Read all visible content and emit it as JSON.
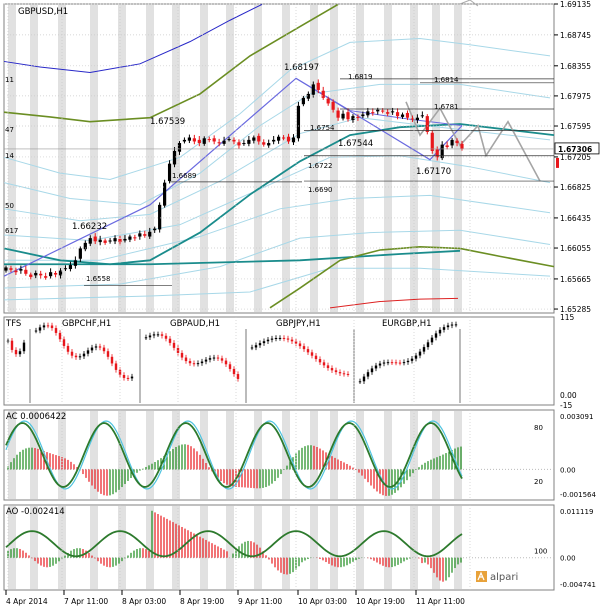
{
  "colors": {
    "bull": "#000000",
    "bear": "#e8171c",
    "kagi": "#a5a5a5",
    "band_outer": "#2828c8",
    "band_olive": "#6b8e23",
    "band_cyan": "#a8d8e8",
    "band_teal": "#1a8c8c",
    "band_red": "#dd2222",
    "zigzag": "#6a6ae0",
    "ac_up": "#1a8a1a",
    "ac_down": "#e8171c",
    "ac_line": "#2d7a2d",
    "ac_signal": "#4fc4e0",
    "grid": "#c9c9c9",
    "stripe": "#d7d7d7"
  },
  "chart_data": [
    {
      "type": "line",
      "panel": "main",
      "title": "GBPUSD,H1",
      "ylim": [
        1.65235,
        1.69135
      ],
      "price_ticks": [
        "1.69135",
        "1.68745",
        "1.68355",
        "1.67975",
        "1.67595",
        "1.67205",
        "1.66825",
        "1.66435",
        "1.66055",
        "1.65665",
        "1.65285"
      ],
      "current_price": "1.67306",
      "left_edge_labels": [
        "11",
        "47",
        "14",
        "50",
        "617"
      ],
      "price_annotations": [
        {
          "text": "1.68197",
          "x": "10 Apr 00:00",
          "y": 1.68197
        },
        {
          "text": "1.67539",
          "x": "8 Apr 15:00",
          "y": 1.67539
        },
        {
          "text": "1.66232",
          "x": "7 Apr 19:00",
          "y": 1.66232
        },
        {
          "text": "1.67544",
          "x": "10 Apr 08:00",
          "y": 1.67544
        },
        {
          "text": "1.67170",
          "x": "11 Apr 07:00",
          "y": 1.6717
        },
        {
          "text": "1.6819",
          "x": "10 Apr 13:00",
          "y": 1.6819
        },
        {
          "text": "1.6814",
          "x": "11 Apr 11:00",
          "y": 1.6814
        },
        {
          "text": "1.6781",
          "x": "11 Apr 11:00",
          "y": 1.6781
        },
        {
          "text": "1.6754",
          "x": "10 Apr 01:00",
          "y": 1.6754
        },
        {
          "text": "1.6722",
          "x": "10 Apr 02:00",
          "y": 1.6722
        },
        {
          "text": "1.6690",
          "x": "10 Apr 02:00",
          "y": 1.669
        },
        {
          "text": "1.6689",
          "x": "8 Apr 15:00",
          "y": 1.6689
        },
        {
          "text": "1.6558",
          "x": "7 Apr 13:00",
          "y": 1.6558
        }
      ],
      "candles_close": [
        1.6581,
        1.6578,
        1.6575,
        1.6579,
        1.6573,
        1.6569,
        1.6574,
        1.6571,
        1.6568,
        1.6575,
        1.6572,
        1.6577,
        1.658,
        1.6584,
        1.659,
        1.6605,
        1.6612,
        1.6618,
        1.6614,
        1.6616,
        1.6612,
        1.6615,
        1.6618,
        1.6613,
        1.6617,
        1.662,
        1.6618,
        1.6624,
        1.6621,
        1.6626,
        1.663,
        1.666,
        1.6688,
        1.6712,
        1.6728,
        1.6738,
        1.6742,
        1.6745,
        1.674,
        1.6738,
        1.6744,
        1.6742,
        1.674,
        1.6738,
        1.6741,
        1.6743,
        1.674,
        1.6735,
        1.6738,
        1.6742,
        1.6745,
        1.674,
        1.6736,
        1.6738,
        1.6742,
        1.6746,
        1.6744,
        1.674,
        1.6745,
        1.6785,
        1.6795,
        1.68,
        1.6812,
        1.6805,
        1.6795,
        1.6788,
        1.678,
        1.677,
        1.6775,
        1.6768,
        1.6772,
        1.677,
        1.6774,
        1.6778,
        1.6776,
        1.678,
        1.6778,
        1.6775,
        1.6778,
        1.6772,
        1.6774,
        1.677,
        1.6768,
        1.677,
        1.6773,
        1.6752,
        1.6728,
        1.672,
        1.6736,
        1.6733,
        1.6742,
        1.6738,
        1.6731
      ],
      "kagi_points": [
        [
          0,
          1.6795
        ],
        [
          3,
          1.6748
        ],
        [
          6,
          1.68
        ],
        [
          9,
          1.6728
        ],
        [
          13,
          1.6765
        ],
        [
          16,
          1.6686
        ]
      ],
      "zigzag_points": [
        [
          "7 Apr 03:00",
          1.6565
        ],
        [
          "10 Apr 00:00",
          1.68197
        ],
        [
          "11 Apr 07:00",
          1.6717
        ],
        [
          "11 Apr 11:00",
          1.676
        ]
      ]
    },
    {
      "type": "bar",
      "panel": "multi_symbol",
      "title": "TFS",
      "symbols": [
        "GBPCHF,H1",
        "GBPAUD,H1",
        "GBPJPY,H1",
        "EURGBP,H1"
      ],
      "ylim": [
        -15,
        115
      ],
      "ticks": [
        "115",
        "0.00",
        "-15"
      ]
    },
    {
      "type": "bar",
      "panel": "ac",
      "title": "AC 0.0006422",
      "ticks_right": [
        "0.003091",
        "0.00",
        "-0.001564"
      ],
      "ticks_inner": [
        "80",
        "20"
      ]
    },
    {
      "type": "bar",
      "panel": "ao",
      "title": "AO -0.002414",
      "ticks_right": [
        "0.011119",
        "0.00",
        "-0.004741"
      ],
      "ticks_inner": [
        "100"
      ]
    }
  ],
  "time_axis": {
    "labels": [
      "4 Apr 2014",
      "7 Apr 11:00",
      "8 Apr 03:00",
      "8 Apr 19:00",
      "9 Apr 11:00",
      "10 Apr 03:00",
      "10 Apr 19:00",
      "11 Apr 11:00"
    ]
  },
  "brand": {
    "name": "alpari"
  }
}
